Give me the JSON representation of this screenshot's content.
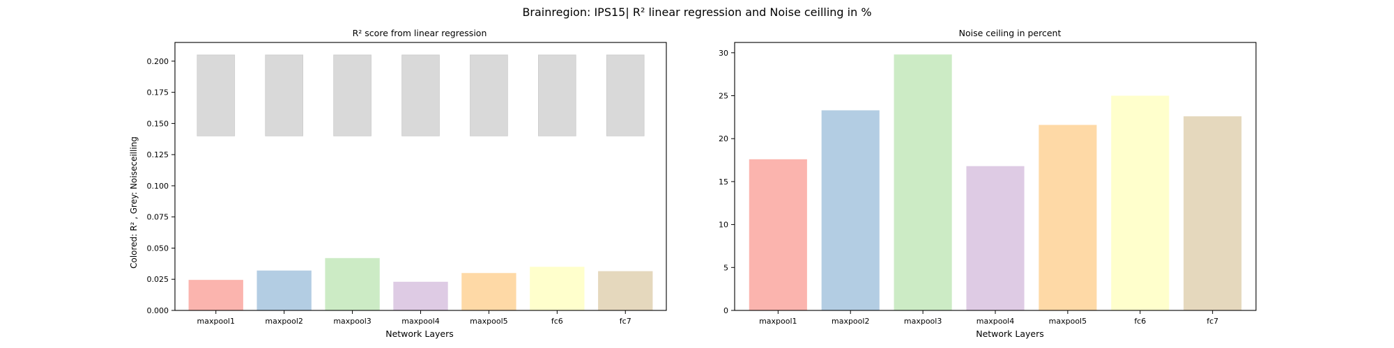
{
  "figure": {
    "suptitle": "Brainregion: IPS15| R² linear regression and Noise ceilling in %"
  },
  "chart_data": [
    {
      "type": "bar",
      "title": "R² score from linear regression",
      "xlabel": "Network Layers",
      "ylabel": "Colored: R² , Grey: Noiseceilling",
      "categories": [
        "maxpool1",
        "maxpool2",
        "maxpool3",
        "maxpool4",
        "maxpool5",
        "fc6",
        "fc7"
      ],
      "ylim": [
        0,
        0.215
      ],
      "yticks": [
        "0.000",
        "0.025",
        "0.050",
        "0.075",
        "0.100",
        "0.125",
        "0.150",
        "0.175",
        "0.200"
      ],
      "grid": false,
      "series": [
        {
          "values": [
            0.0245,
            0.032,
            0.042,
            0.023,
            0.03,
            0.035,
            0.0315
          ],
          "colors": [
            "#fbb4ae",
            "#b3cde3",
            "#ccebc5",
            "#decbe4",
            "#fed9a6",
            "#ffffcc",
            "#e5d8bd"
          ]
        },
        {
          "type": "floating-bar",
          "bottoms": [
            0.14,
            0.14,
            0.14,
            0.14,
            0.14,
            0.14,
            0.14
          ],
          "tops": [
            0.205,
            0.205,
            0.205,
            0.205,
            0.205,
            0.205,
            0.205
          ],
          "color": "#d9d9d9"
        }
      ]
    },
    {
      "type": "bar",
      "title": "Noise ceiling in percent",
      "xlabel": "Network Layers",
      "ylabel": "",
      "categories": [
        "maxpool1",
        "maxpool2",
        "maxpool3",
        "maxpool4",
        "maxpool5",
        "fc6",
        "fc7"
      ],
      "ylim": [
        0,
        31.2
      ],
      "yticks": [
        "0",
        "5",
        "10",
        "15",
        "20",
        "25",
        "30"
      ],
      "grid": false,
      "series": [
        {
          "values": [
            17.6,
            23.3,
            29.8,
            16.8,
            21.6,
            25.0,
            22.6
          ],
          "colors": [
            "#fbb4ae",
            "#b3cde3",
            "#ccebc5",
            "#decbe4",
            "#fed9a6",
            "#ffffcc",
            "#e5d8bd"
          ]
        }
      ]
    }
  ]
}
